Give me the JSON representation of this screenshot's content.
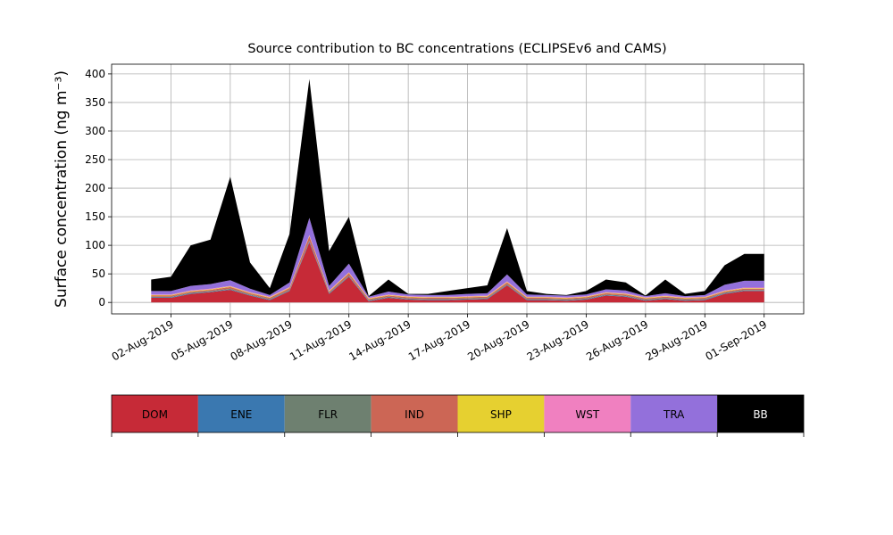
{
  "chart_data": {
    "type": "stacked_area",
    "title": "Source contribution to BC concentrations (ECLIPSEv6 and CAMS)",
    "y_label": "Surface concentration (ng m⁻³)",
    "x": [
      "01-Aug-2019",
      "02-Aug-2019",
      "03-Aug-2019",
      "04-Aug-2019",
      "05-Aug-2019",
      "06-Aug-2019",
      "07-Aug-2019",
      "08-Aug-2019",
      "09-Aug-2019",
      "10-Aug-2019",
      "11-Aug-2019",
      "12-Aug-2019",
      "13-Aug-2019",
      "14-Aug-2019",
      "15-Aug-2019",
      "16-Aug-2019",
      "17-Aug-2019",
      "18-Aug-2019",
      "19-Aug-2019",
      "20-Aug-2019",
      "21-Aug-2019",
      "22-Aug-2019",
      "23-Aug-2019",
      "24-Aug-2019",
      "25-Aug-2019",
      "26-Aug-2019",
      "27-Aug-2019",
      "28-Aug-2019",
      "29-Aug-2019",
      "30-Aug-2019",
      "31-Aug-2019",
      "01-Sep-2019"
    ],
    "xlim": [
      "30-Jul-2019",
      "03-Sep-2019"
    ],
    "xticks": [
      "02-Aug-2019",
      "05-Aug-2019",
      "08-Aug-2019",
      "11-Aug-2019",
      "14-Aug-2019",
      "17-Aug-2019",
      "20-Aug-2019",
      "23-Aug-2019",
      "26-Aug-2019",
      "29-Aug-2019",
      "01-Sep-2019"
    ],
    "ylim": [
      -20,
      417
    ],
    "yticks": [
      0,
      50,
      100,
      150,
      200,
      250,
      300,
      350,
      400
    ],
    "grid": true,
    "series": [
      {
        "name": "DOM",
        "color": "#c62a37",
        "values": [
          8,
          8,
          15,
          18,
          22,
          12,
          4,
          20,
          105,
          15,
          45,
          2,
          8,
          5,
          4,
          4,
          5,
          6,
          30,
          4,
          4,
          3,
          5,
          12,
          10,
          3,
          6,
          3,
          4,
          15,
          20,
          20
        ]
      },
      {
        "name": "ENE",
        "color": "#3a78b0",
        "values": [
          1,
          1,
          1,
          1,
          1,
          1,
          1,
          1,
          2,
          1,
          1,
          1,
          1,
          1,
          1,
          1,
          1,
          1,
          1,
          1,
          1,
          1,
          1,
          1,
          1,
          1,
          1,
          1,
          1,
          1,
          1,
          1
        ]
      },
      {
        "name": "FLR",
        "color": "#6e8070",
        "values": [
          1,
          1,
          1,
          1,
          1,
          1,
          1,
          1,
          1,
          1,
          1,
          1,
          1,
          1,
          1,
          1,
          1,
          1,
          1,
          1,
          1,
          1,
          1,
          1,
          1,
          1,
          1,
          1,
          1,
          1,
          1,
          1
        ]
      },
      {
        "name": "IND",
        "color": "#cc6655",
        "values": [
          2,
          2,
          2,
          2,
          3,
          2,
          2,
          3,
          8,
          2,
          4,
          2,
          2,
          2,
          2,
          2,
          2,
          2,
          3,
          2,
          2,
          2,
          2,
          2,
          2,
          2,
          2,
          2,
          2,
          2,
          2,
          2
        ]
      },
      {
        "name": "SHP",
        "color": "#e6d030",
        "values": [
          1,
          1,
          1,
          1,
          1,
          1,
          1,
          1,
          1,
          1,
          1,
          1,
          1,
          1,
          1,
          1,
          1,
          1,
          1,
          1,
          1,
          1,
          1,
          1,
          1,
          1,
          1,
          1,
          1,
          1,
          1,
          1
        ]
      },
      {
        "name": "WST",
        "color": "#f080c0",
        "values": [
          1,
          1,
          1,
          1,
          1,
          1,
          1,
          1,
          1,
          1,
          1,
          1,
          1,
          1,
          1,
          1,
          1,
          1,
          1,
          1,
          1,
          1,
          1,
          1,
          1,
          1,
          1,
          1,
          1,
          1,
          1,
          1
        ]
      },
      {
        "name": "TRA",
        "color": "#9370db",
        "values": [
          6,
          6,
          8,
          8,
          10,
          6,
          3,
          8,
          30,
          8,
          15,
          2,
          5,
          3,
          3,
          3,
          4,
          4,
          12,
          4,
          3,
          3,
          3,
          5,
          5,
          2,
          4,
          2,
          3,
          10,
          12,
          12
        ]
      },
      {
        "name": "BB",
        "color": "#000000",
        "values": [
          20,
          25,
          71,
          78,
          181,
          46,
          12,
          85,
          243,
          61,
          82,
          1,
          21,
          1,
          2,
          7,
          10,
          14,
          81,
          6,
          2,
          1,
          6,
          17,
          14,
          1,
          24,
          4,
          7,
          34,
          47,
          47
        ]
      }
    ]
  }
}
